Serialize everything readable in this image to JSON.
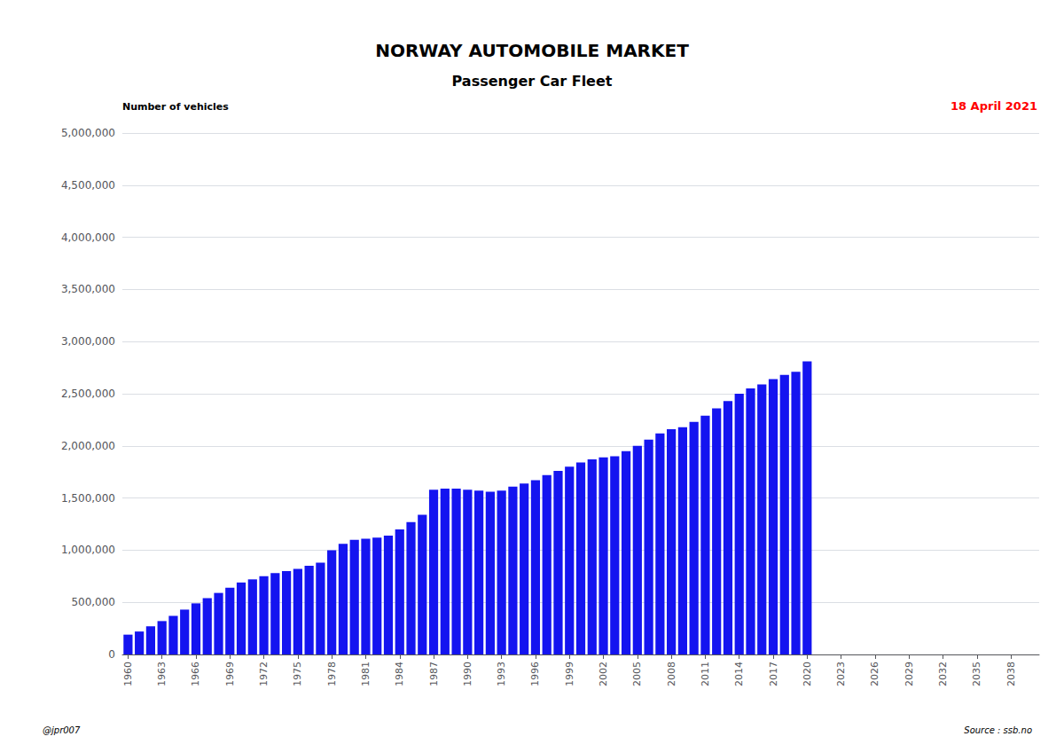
{
  "chart_data": {
    "type": "bar",
    "title": "NORWAY AUTOMOBILE MARKET",
    "subtitle": "Passenger Car Fleet",
    "ylabel": "Number of vehicles",
    "annotations": [
      {
        "text": "18 April 2021",
        "color": "red"
      },
      {
        "text": "@jpr007"
      },
      {
        "text": "Source : ssb.no"
      }
    ],
    "color": "#1414f0",
    "x": [
      1960,
      1961,
      1962,
      1963,
      1964,
      1965,
      1966,
      1967,
      1968,
      1969,
      1970,
      1971,
      1972,
      1973,
      1974,
      1975,
      1976,
      1977,
      1978,
      1979,
      1980,
      1981,
      1982,
      1983,
      1984,
      1985,
      1986,
      1987,
      1988,
      1989,
      1990,
      1991,
      1992,
      1993,
      1994,
      1995,
      1996,
      1997,
      1998,
      1999,
      2000,
      2001,
      2002,
      2003,
      2004,
      2005,
      2006,
      2007,
      2008,
      2009,
      2010,
      2011,
      2012,
      2013,
      2014,
      2015,
      2016,
      2017,
      2018,
      2019,
      2020
    ],
    "values": [
      190000,
      220000,
      270000,
      320000,
      370000,
      430000,
      490000,
      540000,
      590000,
      640000,
      690000,
      720000,
      750000,
      780000,
      800000,
      820000,
      850000,
      880000,
      1000000,
      1060000,
      1100000,
      1110000,
      1120000,
      1140000,
      1200000,
      1270000,
      1340000,
      1580000,
      1590000,
      1590000,
      1580000,
      1570000,
      1560000,
      1570000,
      1610000,
      1640000,
      1670000,
      1720000,
      1760000,
      1800000,
      1840000,
      1870000,
      1890000,
      1900000,
      1950000,
      2000000,
      2060000,
      2120000,
      2160000,
      2180000,
      2230000,
      2290000,
      2360000,
      2430000,
      2500000,
      2550000,
      2590000,
      2640000,
      2680000,
      2710000,
      2810000
    ],
    "xlim": [
      1959.5,
      2040.5
    ],
    "xticks": [
      1960,
      1963,
      1966,
      1969,
      1972,
      1975,
      1978,
      1981,
      1984,
      1987,
      1990,
      1993,
      1996,
      1999,
      2002,
      2005,
      2008,
      2011,
      2014,
      2017,
      2020,
      2023,
      2026,
      2029,
      2032,
      2035,
      2038
    ],
    "ylim": [
      0,
      5000000
    ],
    "yticks": [
      0,
      {
        "value": 500000,
        "label": "500,000"
      },
      {
        "value": 1000000,
        "label": "1,000,000"
      },
      {
        "value": 1500000,
        "label": "1,500,000"
      },
      {
        "value": 2000000,
        "label": "2,000,000"
      },
      {
        "value": 2500000,
        "label": "2,500,000"
      },
      {
        "value": 3000000,
        "label": "3,000,000"
      },
      {
        "value": 3500000,
        "label": "3,500,000"
      },
      {
        "value": 4000000,
        "label": "4,000,000"
      },
      {
        "value": 4500000,
        "label": "4,500,000"
      },
      {
        "value": 5000000,
        "label": "5,000,000"
      }
    ],
    "grid": true
  }
}
